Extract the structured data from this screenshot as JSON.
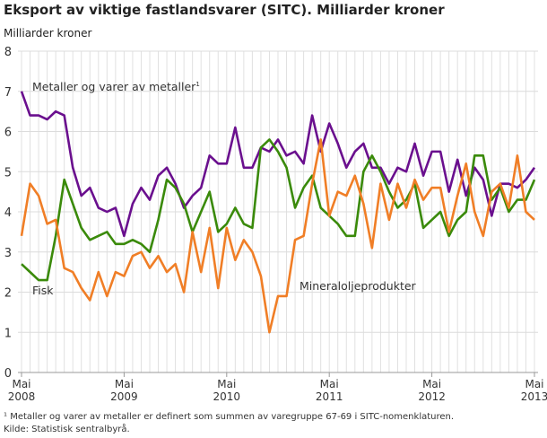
{
  "chart_data": {
    "type": "line",
    "title": "Eksport av viktige fastlandsvarer (SITC).  Milliarder kroner",
    "ylabel": "Milliarder kroner",
    "ylim": [
      0,
      8
    ],
    "yticks": [
      "0",
      "1",
      "2",
      "3",
      "4",
      "5",
      "6",
      "7",
      "8"
    ],
    "grid": true,
    "x_start": "2008-05",
    "x_end": "2013-05",
    "xticks": [
      {
        "month": "Mai",
        "year": "2008"
      },
      {
        "month": "Mai",
        "year": "2009"
      },
      {
        "month": "Mai",
        "year": "2010"
      },
      {
        "month": "Mai",
        "year": "2011"
      },
      {
        "month": "Mai",
        "year": "2012"
      },
      {
        "month": "Mai",
        "year": "2013"
      }
    ],
    "series": [
      {
        "name": "Metaller og varer av metaller",
        "footnote_mark": "1",
        "color": "#6a0f8e",
        "values": [
          7.0,
          6.4,
          6.4,
          6.3,
          6.5,
          6.4,
          5.1,
          4.4,
          4.6,
          4.1,
          4.0,
          4.1,
          3.4,
          4.2,
          4.6,
          4.3,
          4.9,
          5.1,
          4.7,
          4.1,
          4.4,
          4.6,
          5.4,
          5.2,
          5.2,
          6.1,
          5.1,
          5.1,
          5.6,
          5.5,
          5.8,
          5.4,
          5.5,
          5.2,
          6.4,
          5.5,
          6.2,
          5.7,
          5.1,
          5.5,
          5.7,
          5.1,
          5.1,
          4.7,
          5.1,
          5.0,
          5.7,
          4.9,
          5.5,
          5.5,
          4.5,
          5.3,
          4.4,
          5.1,
          4.8,
          3.9,
          4.7,
          4.7,
          4.6,
          4.8,
          5.1
        ]
      },
      {
        "name": "Fisk",
        "color": "#3a8a0a",
        "values": [
          2.7,
          2.5,
          2.3,
          2.3,
          3.4,
          4.8,
          4.2,
          3.6,
          3.3,
          3.4,
          3.5,
          3.2,
          3.2,
          3.3,
          3.2,
          3.0,
          3.8,
          4.8,
          4.6,
          4.2,
          3.5,
          4.0,
          4.5,
          3.5,
          3.7,
          4.1,
          3.7,
          3.6,
          5.6,
          5.8,
          5.5,
          5.1,
          4.1,
          4.6,
          4.9,
          4.1,
          3.9,
          3.7,
          3.4,
          3.4,
          5.0,
          5.4,
          5.0,
          4.5,
          4.1,
          4.3,
          4.7,
          3.6,
          3.8,
          4.0,
          3.4,
          3.8,
          4.0,
          5.4,
          5.4,
          4.3,
          4.6,
          4.0,
          4.3,
          4.3,
          4.8
        ]
      },
      {
        "name": "Mineraloljeprodukter",
        "color": "#f07e26",
        "values": [
          3.4,
          4.7,
          4.4,
          3.7,
          3.8,
          2.6,
          2.5,
          2.1,
          1.8,
          2.5,
          1.9,
          2.5,
          2.4,
          2.9,
          3.0,
          2.6,
          2.9,
          2.5,
          2.7,
          2.0,
          3.5,
          2.5,
          3.6,
          2.1,
          3.6,
          2.8,
          3.3,
          3.0,
          2.4,
          1.0,
          1.9,
          1.9,
          3.3,
          3.4,
          4.7,
          5.8,
          3.9,
          4.5,
          4.4,
          4.9,
          4.2,
          3.1,
          4.7,
          3.8,
          4.7,
          4.1,
          4.8,
          4.3,
          4.6,
          4.6,
          3.5,
          4.4,
          5.2,
          4.0,
          3.4,
          4.5,
          4.7,
          4.1,
          5.4,
          4.0,
          3.8
        ]
      }
    ]
  },
  "footnote": "¹ Metaller og varer av metaller er definert som summen av varegruppe 67-69 i SITC-nomenklaturen.",
  "source": "Kilde: Statistisk sentralbyrå."
}
